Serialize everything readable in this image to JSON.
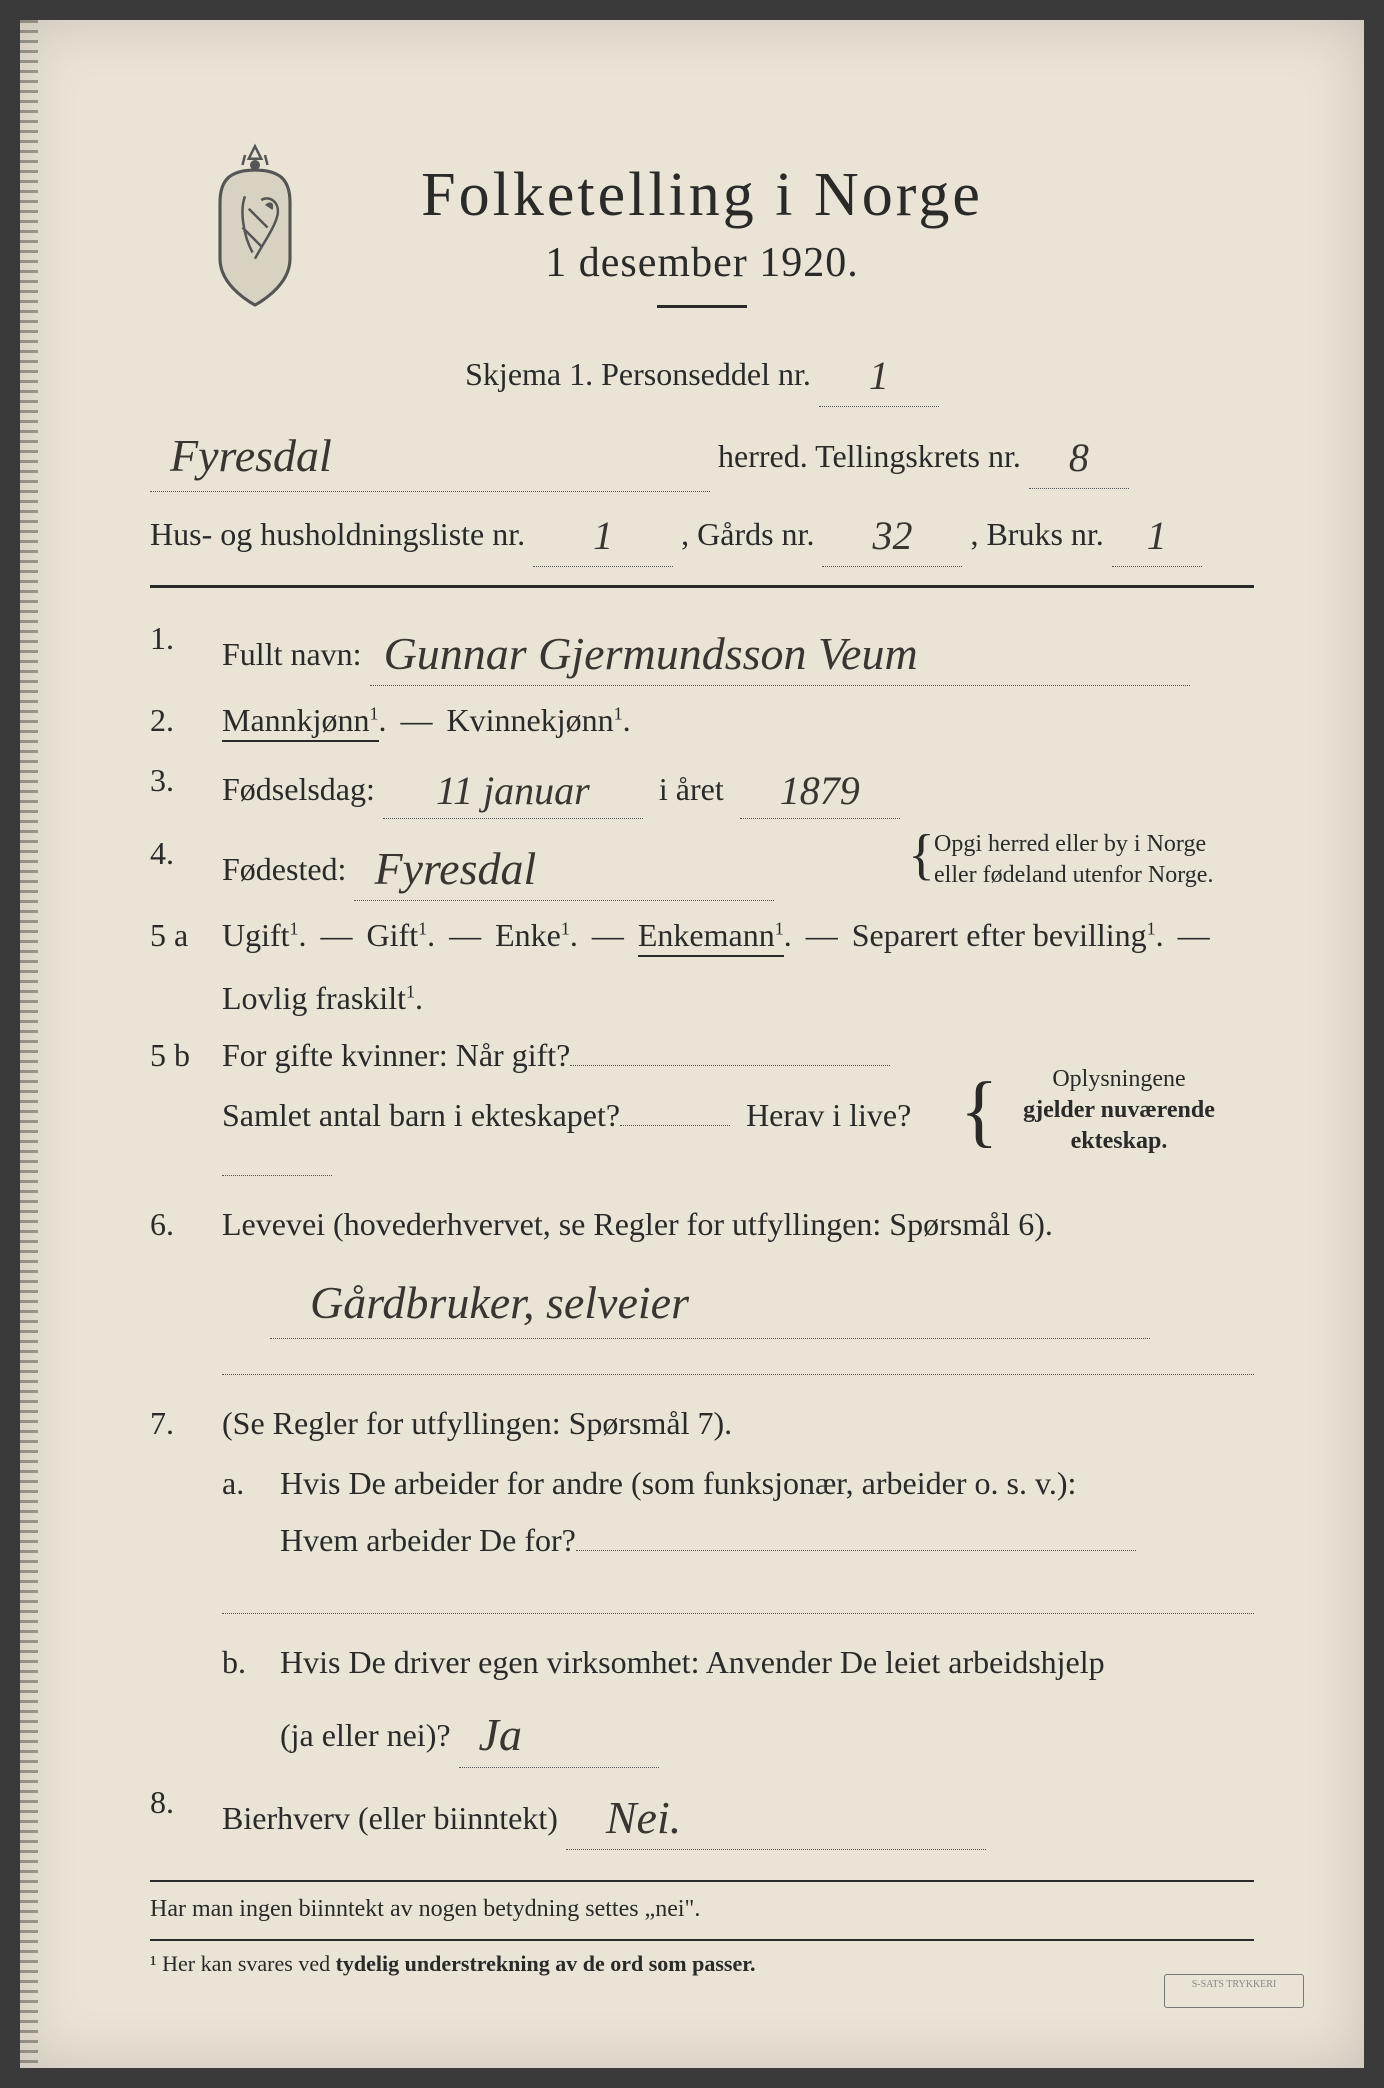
{
  "header": {
    "title": "Folketelling  i  Norge",
    "subtitle": "1 desember 1920."
  },
  "form": {
    "skjema_label": "Skjema 1.   Personseddel nr.",
    "personseddel_nr": "1",
    "herred_label": "herred.   Tellingskrets nr.",
    "herred_value": "Fyresdal",
    "tellingskrets_nr": "8",
    "hushold_label_a": "Hus- og husholdningsliste nr.",
    "hushold_nr": "1",
    "gards_label": ",  Gårds nr.",
    "gards_nr": "32",
    "bruks_label": ",  Bruks nr.",
    "bruks_nr": "1"
  },
  "q1": {
    "label": "Fullt navn:",
    "value": "Gunnar Gjermundsson Veum"
  },
  "q2": {
    "male": "Mannkjønn",
    "female": "Kvinnekjønn",
    "sup": "1",
    "dash": "—"
  },
  "q3": {
    "label": "Fødselsdag:",
    "day": "11 januar",
    "mid": "i året",
    "year": "1879"
  },
  "q4": {
    "label": "Fødested:",
    "value": "Fyresdal",
    "aside1": "Opgi herred eller by i Norge",
    "aside2": "eller fødeland utenfor Norge."
  },
  "q5a": {
    "opts": [
      "Ugift",
      "Gift",
      "Enke",
      "Enkemann",
      "Separert efter bevilling"
    ],
    "sup": "1",
    "line2": "Lovlig fraskilt",
    "selected_index": 3
  },
  "q5b": {
    "l1a": "For gifte kvinner:  Når gift?",
    "l2a": "Samlet antal barn i ekteskapet?",
    "l2b": "Herav i live?",
    "aside1": "Oplysningene",
    "aside2": "gjelder nuværende",
    "aside3": "ekteskap."
  },
  "q6": {
    "label": "Levevei (hovederhvervet, se Regler for utfyllingen:  Spørsmål 6).",
    "value": "Gårdbruker, selveier"
  },
  "q7": {
    "label": "(Se Regler for utfyllingen:  Spørsmål 7).",
    "a1": "Hvis De arbeider for andre (som funksjonær, arbeider o. s. v.):",
    "a2": "Hvem arbeider De for?",
    "b1": "Hvis De driver egen virksomhet:  Anvender De leiet arbeidshjelp",
    "b2": "(ja eller nei)?",
    "b_value": "Ja"
  },
  "q8": {
    "label": "Bierhverv (eller biinntekt)",
    "value": "Nei."
  },
  "footer": {
    "line": "Har man ingen biinntekt av nogen betydning settes „nei\".",
    "note_pre": "¹  Her kan svares ved ",
    "note_bold": "tydelig understrekning av de ord som passer.",
    "stamp": "S-SATS TRYKKERI"
  },
  "labels": {
    "a": "a.",
    "b": "b."
  },
  "nums": {
    "q1": "1.",
    "q2": "2.",
    "q3": "3.",
    "q4": "4.",
    "q5a": "5 a",
    "q5b": "5 b",
    "q6": "6.",
    "q7": "7.",
    "q8": "8."
  }
}
